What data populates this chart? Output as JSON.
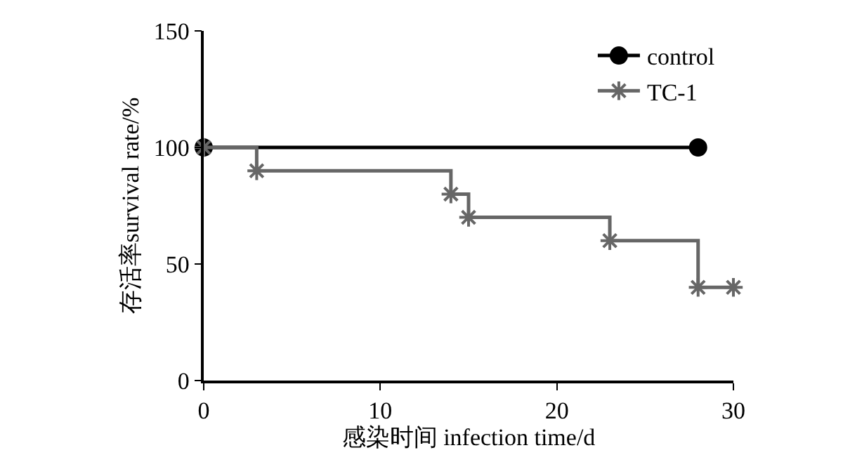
{
  "chart_data": {
    "type": "step",
    "xlabel": "感染时间 infection time/d",
    "ylabel": "存活率survival rate/%",
    "series": [
      {
        "name": "control",
        "color": "#000000",
        "marker": "circle",
        "x": [
          0,
          28
        ],
        "values": [
          100,
          100
        ]
      },
      {
        "name": "TC-1",
        "color": "#666666",
        "marker": "cross",
        "x": [
          0,
          3,
          14,
          15,
          23,
          28,
          30
        ],
        "values": [
          100,
          90,
          80,
          70,
          60,
          40,
          40
        ]
      }
    ],
    "xlim": [
      0,
      30
    ],
    "xticks": [
      0,
      10,
      20,
      30
    ],
    "ylim": [
      0,
      150
    ],
    "yticks": [
      0,
      50,
      100,
      150
    ],
    "legend": "top right"
  }
}
